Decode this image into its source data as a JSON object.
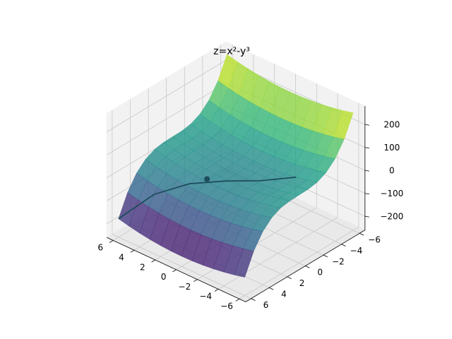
{
  "chart_data": {
    "type": "surface",
    "title": "z=x²-y³",
    "x": [
      -6,
      -5,
      -4,
      -3,
      -2,
      -1,
      0,
      1,
      2,
      3,
      4,
      5,
      6
    ],
    "y": [
      -6,
      -5,
      -4,
      -3,
      -2,
      -1,
      0,
      1,
      2,
      3,
      4,
      5,
      6
    ],
    "z": [
      [
        252,
        241,
        232,
        225,
        220,
        217,
        216,
        217,
        220,
        225,
        232,
        241,
        252
      ],
      [
        161,
        150,
        141,
        134,
        129,
        126,
        125,
        126,
        129,
        134,
        141,
        150,
        161
      ],
      [
        100,
        89,
        80,
        73,
        68,
        65,
        64,
        65,
        68,
        73,
        80,
        89,
        100
      ],
      [
        63,
        52,
        43,
        36,
        31,
        28,
        27,
        28,
        31,
        36,
        43,
        52,
        63
      ],
      [
        44,
        33,
        24,
        17,
        12,
        9,
        8,
        9,
        12,
        17,
        24,
        33,
        44
      ],
      [
        37,
        26,
        17,
        10,
        5,
        2,
        1,
        2,
        5,
        10,
        17,
        26,
        37
      ],
      [
        36,
        25,
        16,
        9,
        4,
        1,
        0,
        1,
        4,
        9,
        16,
        25,
        36
      ],
      [
        35,
        24,
        15,
        8,
        3,
        0,
        -1,
        0,
        3,
        8,
        15,
        24,
        35
      ],
      [
        28,
        17,
        8,
        1,
        -4,
        -7,
        -8,
        -7,
        -4,
        1,
        8,
        17,
        28
      ],
      [
        9,
        -2,
        -11,
        -18,
        -23,
        -26,
        -27,
        -26,
        -23,
        -18,
        -11,
        -2,
        9
      ],
      [
        -28,
        -39,
        -48,
        -55,
        -60,
        -63,
        -64,
        -63,
        -60,
        -55,
        -48,
        -39,
        -28
      ],
      [
        -89,
        -100,
        -109,
        -116,
        -121,
        -124,
        -125,
        -124,
        -121,
        -116,
        -109,
        -100,
        -89
      ],
      [
        -180,
        -191,
        -200,
        -207,
        -212,
        -215,
        -216,
        -215,
        -212,
        -207,
        -200,
        -191,
        -180
      ]
    ],
    "colormap": "viridis",
    "alpha": 0.8,
    "curve": {
      "color": "#1e4d5c",
      "x": [
        6,
        4,
        2,
        0,
        -2,
        -4
      ],
      "y": [
        6,
        4.4,
        2.8,
        1.2,
        -0.4,
        -2
      ],
      "z": [
        -180,
        -69.184,
        -17.952,
        -1.728,
        4.064,
        24
      ]
    },
    "point": {
      "color": "#1e4d5c",
      "x": 1.2,
      "y": 1.8,
      "z": -4.39
    },
    "xlim": [
      -6.6,
      6.6
    ],
    "ylim": [
      -6.6,
      6.6
    ],
    "zlim": [
      -260,
      280
    ],
    "xticks": [
      6,
      4,
      2,
      0,
      {
        "value": -2,
        "label": "−2"
      },
      {
        "value": -4,
        "label": "−4"
      },
      {
        "value": -6,
        "label": "−6"
      }
    ],
    "yticks": [
      {
        "value": -6,
        "label": "−6"
      },
      {
        "value": -4,
        "label": "−4"
      },
      {
        "value": -2,
        "label": "−2"
      },
      0,
      2,
      4,
      6
    ],
    "zticks": [
      200,
      100,
      0,
      {
        "value": -100,
        "label": "−100"
      },
      {
        "value": -200,
        "label": "−200"
      }
    ],
    "grid": true
  }
}
